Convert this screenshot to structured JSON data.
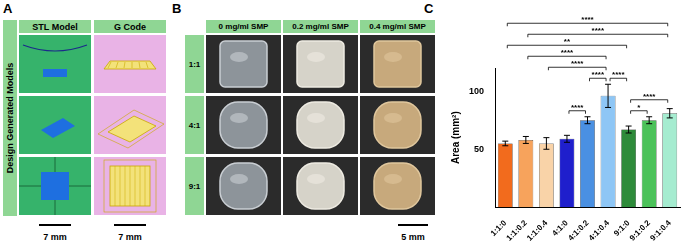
{
  "panel_a": {
    "letter": "A",
    "side_label": "Design Generated Models",
    "column_heads": [
      "STL Model",
      "G Code"
    ],
    "scale_bars": [
      "7 mm",
      "7 mm"
    ]
  },
  "panel_b": {
    "letter": "B",
    "column_heads": [
      "0 mg/ml SMP",
      "0.2 mg/ml SMP",
      "0.4 mg/ml SMP"
    ],
    "row_heads": [
      "1:1",
      "4:1",
      "9:1"
    ],
    "scale_bar": "5 mm"
  },
  "panel_c": {
    "letter": "C"
  },
  "chart_data": {
    "type": "bar",
    "y_label": "Area (mm²)",
    "categories": [
      "1:1:0",
      "1:1:0.2",
      "1:1:0.4",
      "4:1:0",
      "4:1:0.2",
      "4:1:0.4",
      "9:1:0",
      "9:1:0.2",
      "9:1:0.4"
    ],
    "values": [
      55,
      58,
      55,
      59,
      75,
      96,
      67,
      75,
      81
    ],
    "errors": [
      2,
      3,
      5,
      3,
      3,
      10,
      3,
      3,
      4
    ],
    "colors": [
      "#f26b1d",
      "#f7a35c",
      "#f9d3a8",
      "#1f1fcc",
      "#4a90e2",
      "#8ec6f5",
      "#2e8b3a",
      "#4cc25a",
      "#a5ecd0"
    ],
    "ylim": [
      0,
      120
    ],
    "yticks": [
      50,
      100
    ],
    "grid": false,
    "significance": [
      {
        "from": "1:1:0",
        "to": "9:1:0",
        "label": "**"
      },
      {
        "from": "1:1:0",
        "to": "9:1:0.4",
        "label": "****"
      },
      {
        "from": "1:1:0.2",
        "to": "9:1:0.4",
        "label": "****"
      },
      {
        "from": "1:1:0.4",
        "to": "4:1:0.4",
        "label": "****"
      },
      {
        "from": "1:1:0.2",
        "to": "4:1:0.4",
        "label": "****"
      },
      {
        "from": "4:1:0.2",
        "to": "4:1:0.4",
        "label": "****"
      },
      {
        "from": "4:1:0",
        "to": "4:1:0.2",
        "label": "****"
      },
      {
        "from": "4:1:0.4",
        "to": "9:1:0",
        "label": "****"
      },
      {
        "from": "9:1:0",
        "to": "9:1:0.2",
        "label": "*"
      },
      {
        "from": "9:1:0",
        "to": "9:1:0.4",
        "label": "****"
      }
    ]
  }
}
